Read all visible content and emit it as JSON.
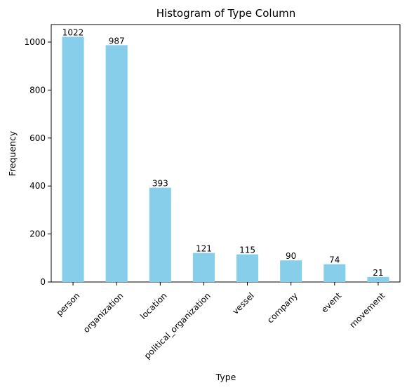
{
  "chart_data": {
    "type": "bar",
    "title": "Histogram of Type Column",
    "xlabel": "Type",
    "ylabel": "Frequency",
    "categories": [
      "person",
      "organization",
      "location",
      "political_organization",
      "vessel",
      "company",
      "event",
      "movement"
    ],
    "values": [
      1022,
      987,
      393,
      121,
      115,
      90,
      74,
      21
    ],
    "data_labels": [
      "1022",
      "987",
      "393",
      "121",
      "115",
      "90",
      "74",
      "21"
    ],
    "yticks": [
      0,
      200,
      400,
      600,
      800,
      1000
    ],
    "ytick_labels": [
      "0",
      "200",
      "400",
      "600",
      "800",
      "1000"
    ],
    "ylim": [
      0,
      1073
    ],
    "grid": false,
    "bar_color": "#87ceeb"
  }
}
